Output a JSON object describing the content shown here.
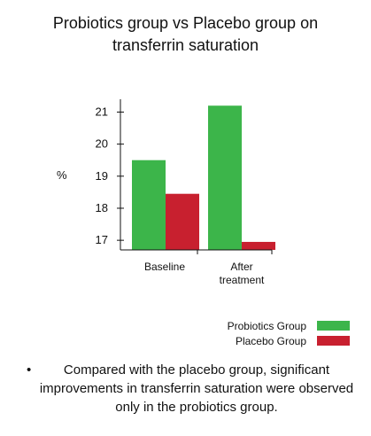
{
  "title_line1": "Probiotics group vs Placebo group on",
  "title_line2": "transferrin saturation",
  "ylabel": "%",
  "legend": [
    {
      "name": "Probiotics Group",
      "color": "#3cb54a"
    },
    {
      "name": "Placebo Group",
      "color": "#c8202f"
    }
  ],
  "note": {
    "bullet": "•",
    "text": "Compared with the placebo group, significant improvements in transferrin saturation were observed only in the probiotics group."
  },
  "chart_data": {
    "type": "bar",
    "title": "Probiotics group vs Placebo group on transferrin saturation",
    "ylabel": "%",
    "categories": [
      "Baseline",
      "After treatment"
    ],
    "category_lines": [
      [
        "Baseline"
      ],
      [
        "After",
        "treatment"
      ]
    ],
    "series": [
      {
        "name": "Probiotics Group",
        "color": "#3cb54a",
        "values": [
          19.5,
          21.2
        ]
      },
      {
        "name": "Placebo Group",
        "color": "#c8202f",
        "values": [
          18.45,
          16.95
        ]
      }
    ],
    "yticks": [
      17,
      18,
      19,
      20,
      21
    ],
    "ylim": [
      16.7,
      21.4
    ],
    "legend_position": "bottom-right",
    "grid": false
  }
}
